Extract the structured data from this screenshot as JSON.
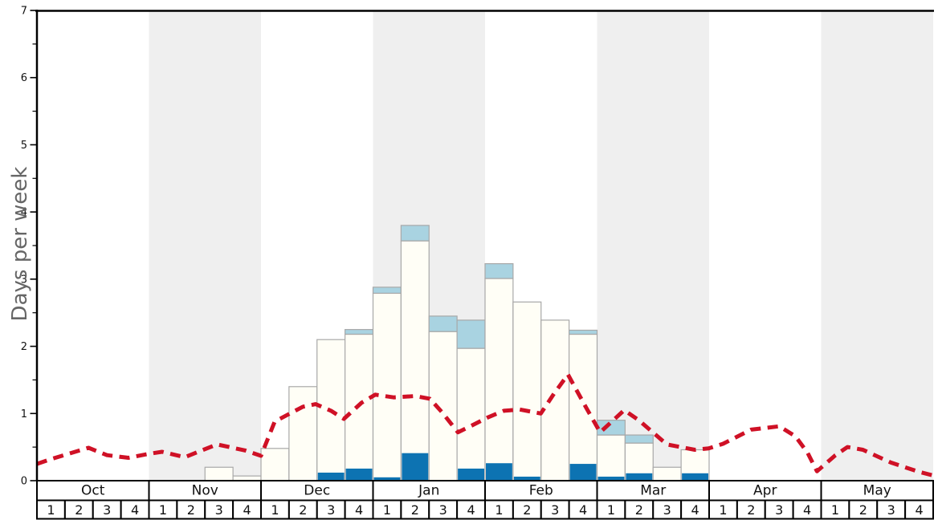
{
  "chart_data": {
    "type": "bar",
    "title": "",
    "ylabel": "Days per week",
    "ylim": [
      0,
      7
    ],
    "y_major_ticks": [
      0,
      1,
      2,
      3,
      4,
      5,
      6,
      7
    ],
    "y_minor_tick_step": 0.5,
    "grid": false,
    "legend": "none",
    "months": [
      "Oct",
      "Nov",
      "Dec",
      "Jan",
      "Feb",
      "Mar",
      "Apr",
      "May"
    ],
    "week_labels": [
      "1",
      "2",
      "3",
      "4"
    ],
    "weeks_per_month": 4,
    "shaded_months": [
      "Nov",
      "Jan",
      "Mar",
      "May"
    ],
    "bars": {
      "note": "32 weekly stacked bars, Oct w1 .. May w4; values in days per week",
      "dark_bottom": [
        0,
        0,
        0,
        0,
        0,
        0,
        0,
        0,
        0,
        0,
        0.12,
        0.18,
        0.05,
        0.41,
        0,
        0.18,
        0.26,
        0.06,
        0,
        0.25,
        0.06,
        0.11,
        0,
        0.11,
        0,
        0,
        0,
        0,
        0,
        0,
        0,
        0
      ],
      "white_mid": [
        0,
        0,
        0,
        0,
        0,
        0,
        0.2,
        0.07,
        0.48,
        1.4,
        1.98,
        2.0,
        2.74,
        3.16,
        2.22,
        1.79,
        2.75,
        2.6,
        2.39,
        1.93,
        0.62,
        0.45,
        0.2,
        0.35,
        0,
        0,
        0,
        0,
        0,
        0,
        0,
        0
      ],
      "light_top": [
        0,
        0,
        0,
        0,
        0,
        0,
        0,
        0,
        0,
        0,
        0,
        0.07,
        0.09,
        0.23,
        0.23,
        0.42,
        0.22,
        0,
        0,
        0.06,
        0.22,
        0.12,
        0,
        0,
        0,
        0,
        0,
        0,
        0,
        0,
        0,
        0
      ]
    },
    "line": {
      "style": "dashed",
      "note": "x in week units (0 = start of Oct w1, 32 = end of May w4), y in days per week",
      "points": [
        [
          0.0,
          0.25
        ],
        [
          0.49,
          0.32
        ],
        [
          1.84,
          0.49
        ],
        [
          2.5,
          0.38
        ],
        [
          3.27,
          0.34
        ],
        [
          4.0,
          0.4
        ],
        [
          4.47,
          0.43
        ],
        [
          5.28,
          0.35
        ],
        [
          6.43,
          0.54
        ],
        [
          7.43,
          0.45
        ],
        [
          8.0,
          0.37
        ],
        [
          8.49,
          0.88
        ],
        [
          9.49,
          1.1
        ],
        [
          9.95,
          1.14
        ],
        [
          10.5,
          1.04
        ],
        [
          10.96,
          0.92
        ],
        [
          11.59,
          1.16
        ],
        [
          12.08,
          1.28
        ],
        [
          12.74,
          1.24
        ],
        [
          13.51,
          1.26
        ],
        [
          14.03,
          1.22
        ],
        [
          14.46,
          1.02
        ],
        [
          15.03,
          0.72
        ],
        [
          15.52,
          0.82
        ],
        [
          16.09,
          0.94
        ],
        [
          16.67,
          1.04
        ],
        [
          17.24,
          1.06
        ],
        [
          17.99,
          1.0
        ],
        [
          18.47,
          1.3
        ],
        [
          18.96,
          1.58
        ],
        [
          19.62,
          1.08
        ],
        [
          20.11,
          0.72
        ],
        [
          20.97,
          1.05
        ],
        [
          21.49,
          0.9
        ],
        [
          22.49,
          0.54
        ],
        [
          23.49,
          0.46
        ],
        [
          23.98,
          0.48
        ],
        [
          24.5,
          0.55
        ],
        [
          25.5,
          0.76
        ],
        [
          26.51,
          0.81
        ],
        [
          27.08,
          0.66
        ],
        [
          27.51,
          0.42
        ],
        [
          27.85,
          0.14
        ],
        [
          28.51,
          0.38
        ],
        [
          28.94,
          0.5
        ],
        [
          29.49,
          0.46
        ],
        [
          30.49,
          0.27
        ],
        [
          31.5,
          0.13
        ],
        [
          31.98,
          0.08
        ]
      ]
    },
    "colors": {
      "line_red": "#cf1126",
      "bar_dark_blue": "#0d73b2",
      "bar_light_blue": "#a9d3e1",
      "bar_white": "#fffef6",
      "bar_border": "#a8a8a8",
      "band_gray": "#efefef",
      "axis_black": "#000000",
      "ylabel_gray": "#666666",
      "tick_label": "#111111"
    }
  }
}
